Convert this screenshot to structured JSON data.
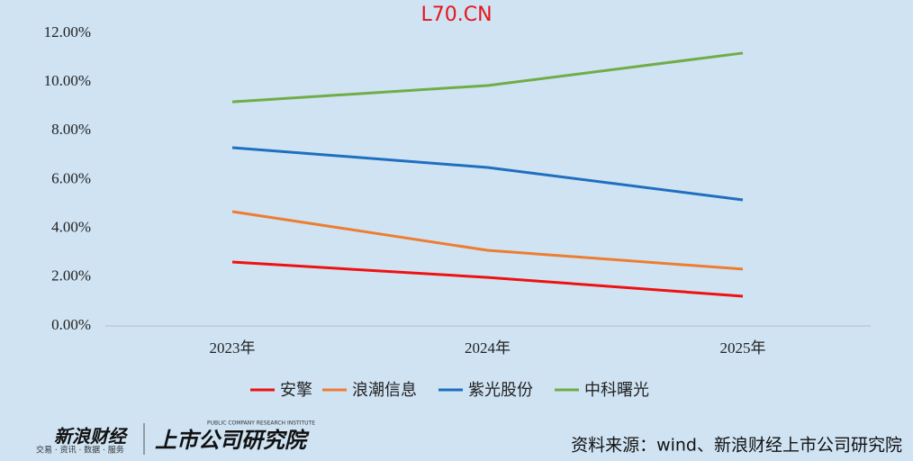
{
  "chart_data": {
    "type": "line",
    "title": "L70.CN",
    "categories": [
      "2023年",
      "2024年",
      "2025年"
    ],
    "series": [
      {
        "name": "安擎",
        "color": "#ee1111",
        "values": [
          2.62,
          1.99,
          1.22
        ]
      },
      {
        "name": "浪潮信息",
        "color": "#ed7d31",
        "values": [
          4.69,
          3.1,
          2.33
        ]
      },
      {
        "name": "紫光股份",
        "color": "#1f6fbf",
        "values": [
          7.31,
          6.5,
          5.17
        ]
      },
      {
        "name": "中科曙光",
        "color": "#70ad47",
        "values": [
          9.19,
          9.86,
          11.19
        ]
      }
    ],
    "ylim": [
      0,
      12
    ],
    "yticks": [
      {
        "value": 0,
        "label": "0.00%"
      },
      {
        "value": 2,
        "label": "2.00%"
      },
      {
        "value": 4,
        "label": "4.00%"
      },
      {
        "value": 6,
        "label": "6.00%"
      },
      {
        "value": 8,
        "label": "8.00%"
      },
      {
        "value": 10,
        "label": "10.00%"
      },
      {
        "value": 12,
        "label": "12.00%"
      }
    ],
    "grid": false,
    "legend": "bottom"
  },
  "footer": {
    "logo": "新浪财经",
    "logo_sub": "交易 · 资讯 · 数据 · 服务",
    "institute": "上市公司研究院",
    "institute_en": "PUBLIC COMPANY RESEARCH INSTITUTE",
    "source": "资料来源：wind、新浪财经上市公司研究院"
  }
}
